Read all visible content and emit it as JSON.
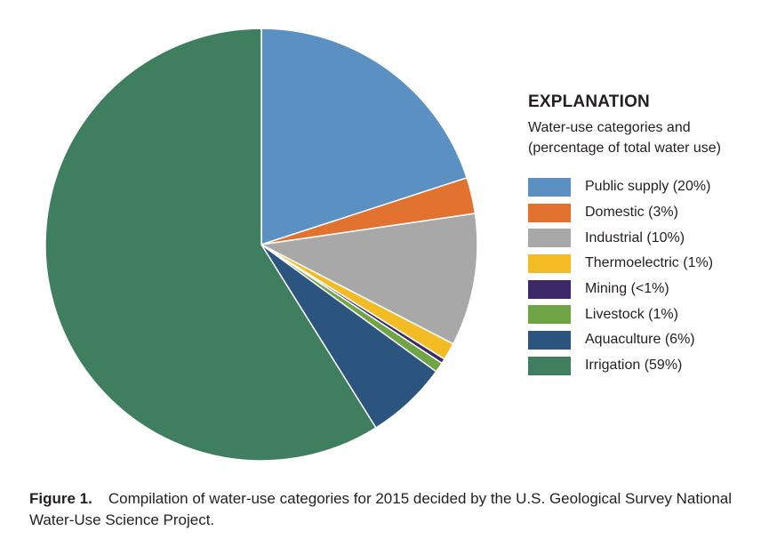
{
  "chart_data": {
    "type": "pie",
    "title": "EXPLANATION",
    "subtitle_lines": [
      "Water-use categories and",
      "(percentage of total water use)"
    ],
    "start_angle_deg": 0,
    "direction": "clockwise",
    "slices": [
      {
        "name": "Public supply (20%)",
        "value": 20.0,
        "color": "#5b90c3"
      },
      {
        "name": "Domestic (3%)",
        "value": 2.7,
        "color": "#e2722f"
      },
      {
        "name": "Industrial (10%)",
        "value": 9.9,
        "color": "#a8a8a8"
      },
      {
        "name": "Thermoelectric (1%)",
        "value": 1.3,
        "color": "#f3bb24"
      },
      {
        "name": "Mining (<1%)",
        "value": 0.35,
        "color": "#3b2a67"
      },
      {
        "name": "Livestock (1%)",
        "value": 0.75,
        "color": "#6fa545"
      },
      {
        "name": "Aquaculture (6%)",
        "value": 6.1,
        "color": "#2b557f"
      },
      {
        "name": "Irrigation (59%)",
        "value": 58.9,
        "color": "#3f7f60"
      }
    ],
    "legend_position": "right"
  },
  "caption": {
    "label": "Figure 1.",
    "text": "Compilation of water-use categories for 2015 decided by the U.S. Geological Survey National Water-Use Science Project."
  }
}
